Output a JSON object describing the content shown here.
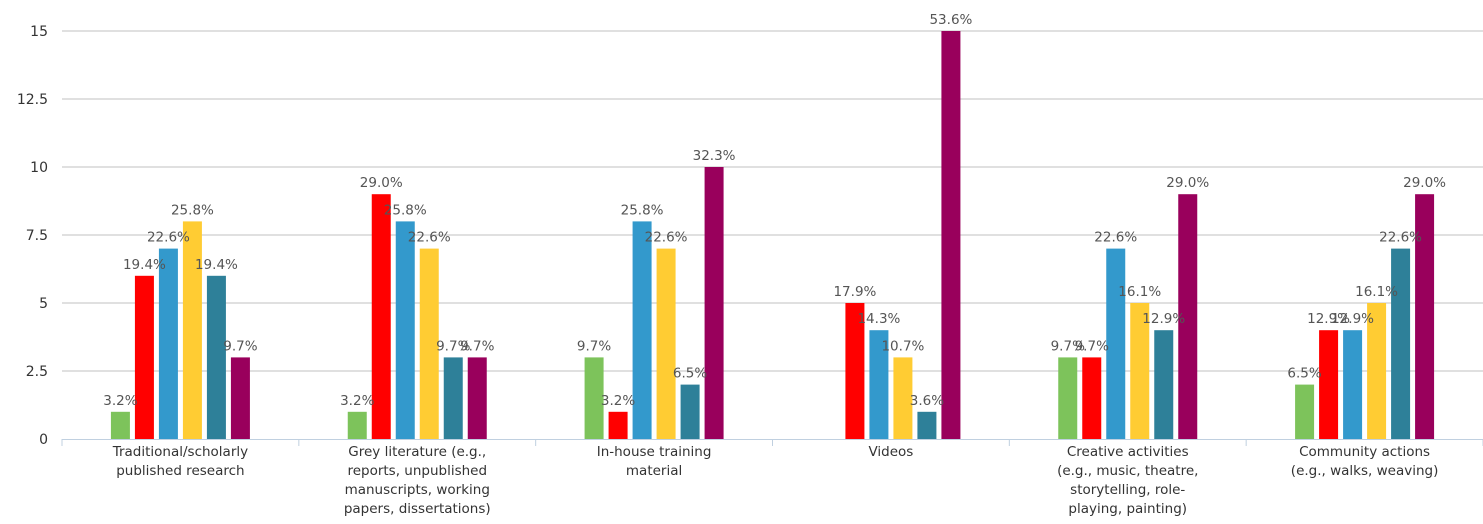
{
  "chart_data": {
    "type": "bar",
    "title": "",
    "xlabel": "",
    "ylabel": "",
    "ylim": [
      0,
      15
    ],
    "yticks": [
      "0",
      "2.5",
      "5",
      "7.5",
      "10",
      "12.5",
      "15"
    ],
    "grid": true,
    "legend": "none",
    "categories": [
      [
        "Traditional/scholarly",
        "published research"
      ],
      [
        "Grey literature (e.g.,",
        "reports, unpublished",
        "manuscripts, working",
        "papers, dissertations)"
      ],
      [
        "In-house training",
        "material"
      ],
      [
        "Videos"
      ],
      [
        "Creative activities",
        "(e.g., music, theatre,",
        "storytelling, role-",
        "playing, painting)"
      ],
      [
        "Community actions",
        "(e.g., walks, weaving)"
      ]
    ],
    "series": [
      {
        "color": "#7dc35b",
        "values": [
          1,
          1,
          3,
          null,
          3,
          2
        ],
        "labels": [
          "3.2%",
          "3.2%",
          "9.7%",
          "",
          "9.7%",
          "6.5%"
        ]
      },
      {
        "color": "#ff0000",
        "values": [
          6,
          9,
          1,
          5,
          3,
          4
        ],
        "labels": [
          "19.4%",
          "29.0%",
          "3.2%",
          "17.9%",
          "9.7%",
          "12.9%"
        ]
      },
      {
        "color": "#3399cc",
        "values": [
          7,
          8,
          8,
          4,
          7,
          4
        ],
        "labels": [
          "22.6%",
          "25.8%",
          "25.8%",
          "14.3%",
          "22.6%",
          "12.9%"
        ]
      },
      {
        "color": "#ffcc33",
        "values": [
          8,
          7,
          7,
          3,
          5,
          5
        ],
        "labels": [
          "25.8%",
          "22.6%",
          "22.6%",
          "10.7%",
          "16.1%",
          "16.1%"
        ]
      },
      {
        "color": "#2e8099",
        "values": [
          6,
          3,
          2,
          1,
          4,
          7
        ],
        "labels": [
          "19.4%",
          "9.7%",
          "6.5%",
          "3.6%",
          "12.9%",
          "22.6%"
        ]
      },
      {
        "color": "#99005c",
        "values": [
          3,
          3,
          10,
          15,
          9,
          9
        ],
        "labels": [
          "9.7%",
          "9.7%",
          "32.3%",
          "53.6%",
          "29.0%",
          "29.0%"
        ]
      }
    ]
  }
}
